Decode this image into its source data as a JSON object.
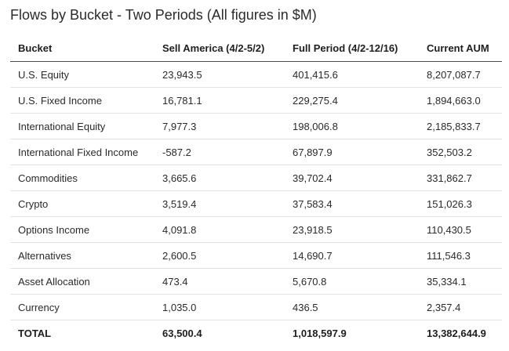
{
  "title": "Flows by Bucket - Two Periods (All figures in $M)",
  "columns": [
    "Bucket",
    "Sell America (4/2-5/2)",
    "Full Period (4/2-12/16)",
    "Current AUM"
  ],
  "rows": [
    [
      "U.S. Equity",
      "23,943.5",
      "401,415.6",
      "8,207,087.7"
    ],
    [
      "U.S. Fixed Income",
      "16,781.1",
      "229,275.4",
      "1,894,663.0"
    ],
    [
      "International Equity",
      "7,977.3",
      "198,006.8",
      "2,185,833.7"
    ],
    [
      "International Fixed Income",
      "-587.2",
      "67,897.9",
      "352,503.2"
    ],
    [
      "Commodities",
      "3,665.6",
      "39,702.4",
      "331,862.7"
    ],
    [
      "Crypto",
      "3,519.4",
      "37,583.4",
      "151,026.3"
    ],
    [
      "Options Income",
      "4,091.8",
      "23,918.5",
      "110,430.5"
    ],
    [
      "Alternatives",
      "2,600.5",
      "14,690.7",
      "111,546.3"
    ],
    [
      "Asset Allocation",
      "473.4",
      "5,670.8",
      "35,334.1"
    ],
    [
      "Currency",
      "1,035.0",
      "436.5",
      "2,357.4"
    ]
  ],
  "total": [
    "TOTAL",
    "63,500.4",
    "1,018,597.9",
    "13,382,644.9"
  ]
}
